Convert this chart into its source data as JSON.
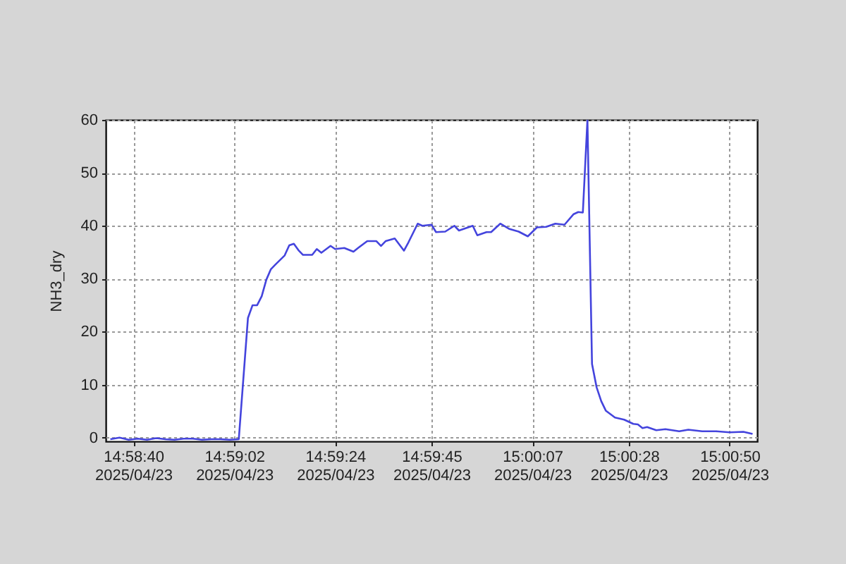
{
  "chart_data": {
    "type": "line",
    "ylabel": "NH3_dry",
    "color": "#4444dd",
    "line_style": "solid",
    "grid": true,
    "xlim": [
      "2025-04-23T14:58:34",
      "2025-04-23T15:00:56"
    ],
    "ylim": [
      -0.7,
      60
    ],
    "xticks": [
      {
        "value": "2025-04-23T14:58:40",
        "label": "14:58:40\n2025/04/23"
      },
      {
        "value": "2025-04-23T14:59:02",
        "label": "14:59:02\n2025/04/23"
      },
      {
        "value": "2025-04-23T14:59:24",
        "label": "14:59:24\n2025/04/23"
      },
      {
        "value": "2025-04-23T14:59:45",
        "label": "14:59:45\n2025/04/23"
      },
      {
        "value": "2025-04-23T15:00:07",
        "label": "15:00:07\n2025/04/23"
      },
      {
        "value": "2025-04-23T15:00:28",
        "label": "15:00:28\n2025/04/23"
      },
      {
        "value": "2025-04-23T15:00:50",
        "label": "15:00:50\n2025/04/23"
      }
    ],
    "yticks": [
      0,
      10,
      20,
      30,
      40,
      50,
      60
    ],
    "x": [
      "2025-04-23T14:58:35",
      "2025-04-23T14:58:37",
      "2025-04-23T14:58:39",
      "2025-04-23T14:58:41",
      "2025-04-23T14:58:43",
      "2025-04-23T14:58:45",
      "2025-04-23T14:58:47",
      "2025-04-23T14:58:49",
      "2025-04-23T14:58:51",
      "2025-04-23T14:58:53",
      "2025-04-23T14:58:55",
      "2025-04-23T14:58:57",
      "2025-04-23T14:58:59",
      "2025-04-23T14:59:01",
      "2025-04-23T14:59:03",
      "2025-04-23T14:59:05",
      "2025-04-23T14:59:06",
      "2025-04-23T14:59:07",
      "2025-04-23T14:59:08",
      "2025-04-23T14:59:09",
      "2025-04-23T14:59:10",
      "2025-04-23T14:59:11",
      "2025-04-23T14:59:13",
      "2025-04-23T14:59:14",
      "2025-04-23T14:59:15",
      "2025-04-23T14:59:16",
      "2025-04-23T14:59:17",
      "2025-04-23T14:59:19",
      "2025-04-23T14:59:20",
      "2025-04-23T14:59:21",
      "2025-04-23T14:59:23",
      "2025-04-23T14:59:24",
      "2025-04-23T14:59:26",
      "2025-04-23T14:59:28",
      "2025-04-23T14:59:29",
      "2025-04-23T14:59:31",
      "2025-04-23T14:59:33",
      "2025-04-23T14:59:34",
      "2025-04-23T14:59:35",
      "2025-04-23T14:59:37",
      "2025-04-23T14:59:39",
      "2025-04-23T14:59:40",
      "2025-04-23T14:59:42",
      "2025-04-23T14:59:43",
      "2025-04-23T14:59:45",
      "2025-04-23T14:59:46",
      "2025-04-23T14:59:48",
      "2025-04-23T14:59:50",
      "2025-04-23T14:59:51",
      "2025-04-23T14:59:52",
      "2025-04-23T14:59:54",
      "2025-04-23T14:59:55",
      "2025-04-23T14:59:57",
      "2025-04-23T14:59:58",
      "2025-04-23T15:00:00",
      "2025-04-23T15:00:02",
      "2025-04-23T15:00:04",
      "2025-04-23T15:00:06",
      "2025-04-23T15:00:08",
      "2025-04-23T15:00:10",
      "2025-04-23T15:00:12",
      "2025-04-23T15:00:14",
      "2025-04-23T15:00:16",
      "2025-04-23T15:00:17",
      "2025-04-23T15:00:18",
      "2025-04-23T15:00:19",
      "2025-04-23T15:00:20",
      "2025-04-23T15:00:21",
      "2025-04-23T15:00:22",
      "2025-04-23T15:00:23",
      "2025-04-23T15:00:25",
      "2025-04-23T15:00:27",
      "2025-04-23T15:00:29",
      "2025-04-23T15:00:30",
      "2025-04-23T15:00:31",
      "2025-04-23T15:00:32",
      "2025-04-23T15:00:34",
      "2025-04-23T15:00:36",
      "2025-04-23T15:00:39",
      "2025-04-23T15:00:41",
      "2025-04-23T15:00:44",
      "2025-04-23T15:00:47",
      "2025-04-23T15:00:50",
      "2025-04-23T15:00:53",
      "2025-04-23T15:00:55"
    ],
    "values": [
      -0.3,
      0.0,
      -0.4,
      -0.2,
      -0.4,
      -0.1,
      -0.3,
      -0.4,
      -0.2,
      -0.2,
      -0.4,
      -0.3,
      -0.3,
      -0.4,
      -0.3,
      22.6,
      25.0,
      25.0,
      26.7,
      29.8,
      31.8,
      32.7,
      34.4,
      36.3,
      36.6,
      35.4,
      34.5,
      34.5,
      35.6,
      34.9,
      36.2,
      35.6,
      35.8,
      35.1,
      35.8,
      37.1,
      37.1,
      36.2,
      37.1,
      37.6,
      35.3,
      36.9,
      40.4,
      40.0,
      40.2,
      38.8,
      38.9,
      40.0,
      39.1,
      39.4,
      40.0,
      38.2,
      38.8,
      38.8,
      40.4,
      39.4,
      38.9,
      38.0,
      39.7,
      39.8,
      40.4,
      40.2,
      42.2,
      42.6,
      42.5,
      60,
      13.9,
      9.5,
      6.9,
      5.1,
      3.8,
      3.4,
      2.6,
      2.5,
      1.8,
      2.0,
      1.4,
      1.6,
      1.2,
      1.5,
      1.2,
      1.2,
      1.0,
      1.1,
      0.7
    ]
  }
}
